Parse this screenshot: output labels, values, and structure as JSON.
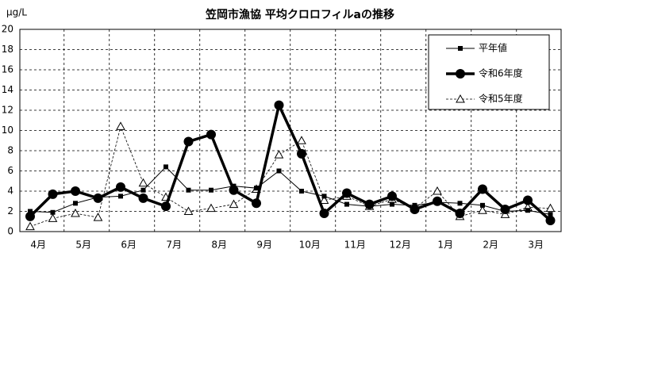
{
  "chart_data": {
    "type": "line",
    "title": "笠岡市漁協 平均クロロフィルaの推移",
    "y_label": "μg/L",
    "categories": [
      "4月",
      null,
      "5月",
      null,
      "6月",
      null,
      "7月",
      null,
      "8月",
      null,
      "9月",
      null,
      "10月",
      null,
      "11月",
      null,
      "12月",
      null,
      "1月",
      null,
      "2月",
      null,
      "3月",
      null
    ],
    "ylim": [
      0,
      20
    ],
    "yticks": [
      0,
      2,
      4,
      6,
      8,
      10,
      12,
      14,
      16,
      18,
      20
    ],
    "grid": true,
    "legend": "top-right",
    "series": [
      {
        "name": "平年値",
        "color": "#000000",
        "values": [
          2.0,
          1.9,
          2.8,
          3.4,
          3.5,
          4.1,
          6.4,
          4.1,
          4.1,
          4.5,
          4.3,
          6.0,
          4.0,
          3.5,
          2.7,
          2.5,
          2.7,
          2.6,
          2.9,
          2.8,
          2.6,
          2.0,
          2.1,
          1.7
        ]
      },
      {
        "name": "令和6年度",
        "color": "#000000",
        "values": [
          1.5,
          3.7,
          4.0,
          3.3,
          4.4,
          3.3,
          2.5,
          8.9,
          9.6,
          4.1,
          2.8,
          12.5,
          7.7,
          1.8,
          3.8,
          2.7,
          3.5,
          2.2,
          3.0,
          1.8,
          4.2,
          2.2,
          3.1,
          1.1
        ]
      },
      {
        "name": "令和5年度",
        "color": "#000000",
        "values": [
          0.5,
          1.3,
          1.8,
          1.4,
          10.4,
          4.8,
          3.4,
          2.0,
          2.3,
          2.7,
          4.2,
          7.6,
          9.0,
          3.1,
          3.5,
          2.5,
          3.2,
          2.3,
          4.0,
          1.5,
          2.1,
          1.7,
          2.4,
          2.3
        ]
      }
    ]
  }
}
